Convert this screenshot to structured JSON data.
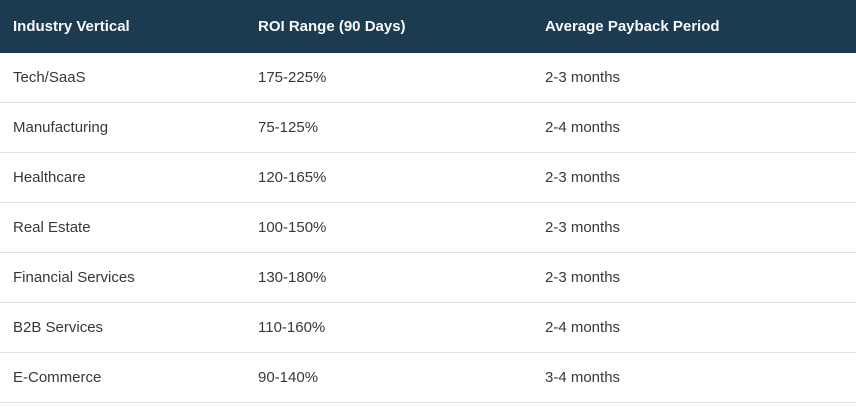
{
  "table": {
    "columns": [
      "Industry Vertical",
      "ROI Range (90 Days)",
      "Average Payback Period"
    ],
    "rows": [
      [
        "Tech/SaaS",
        "175-225%",
        "2-3 months"
      ],
      [
        "Manufacturing",
        "75-125%",
        "2-4 months"
      ],
      [
        "Healthcare",
        "120-165%",
        "2-3 months"
      ],
      [
        "Real Estate",
        "100-150%",
        "2-3 months"
      ],
      [
        "Financial Services",
        "130-180%",
        "2-3 months"
      ],
      [
        "B2B Services",
        "110-160%",
        "2-4 months"
      ],
      [
        "E-Commerce",
        "90-140%",
        "3-4 months"
      ]
    ]
  },
  "colors": {
    "header_background": "#1d3b50",
    "header_text": "#f8f9fa",
    "body_text": "#383838",
    "row_divider": "#dee2e6",
    "page_background": "#ffffff"
  },
  "chart_data": {
    "type": "table",
    "title": "",
    "columns": [
      "Industry Vertical",
      "ROI Range (90 Days)",
      "Average Payback Period"
    ],
    "rows": [
      {
        "industry": "Tech/SaaS",
        "roi_range_90_days": "175-225%",
        "avg_payback_period": "2-3 months"
      },
      {
        "industry": "Manufacturing",
        "roi_range_90_days": "75-125%",
        "avg_payback_period": "2-4 months"
      },
      {
        "industry": "Healthcare",
        "roi_range_90_days": "120-165%",
        "avg_payback_period": "2-3 months"
      },
      {
        "industry": "Real Estate",
        "roi_range_90_days": "100-150%",
        "avg_payback_period": "2-3 months"
      },
      {
        "industry": "Financial Services",
        "roi_range_90_days": "130-180%",
        "avg_payback_period": "2-3 months"
      },
      {
        "industry": "B2B Services",
        "roi_range_90_days": "110-160%",
        "avg_payback_period": "2-4 months"
      },
      {
        "industry": "E-Commerce",
        "roi_range_90_days": "90-140%",
        "avg_payback_period": "3-4 months"
      }
    ],
    "roi_low_values": [
      175,
      75,
      120,
      100,
      130,
      110,
      90
    ],
    "roi_high_values": [
      225,
      125,
      165,
      150,
      180,
      160,
      140
    ]
  }
}
